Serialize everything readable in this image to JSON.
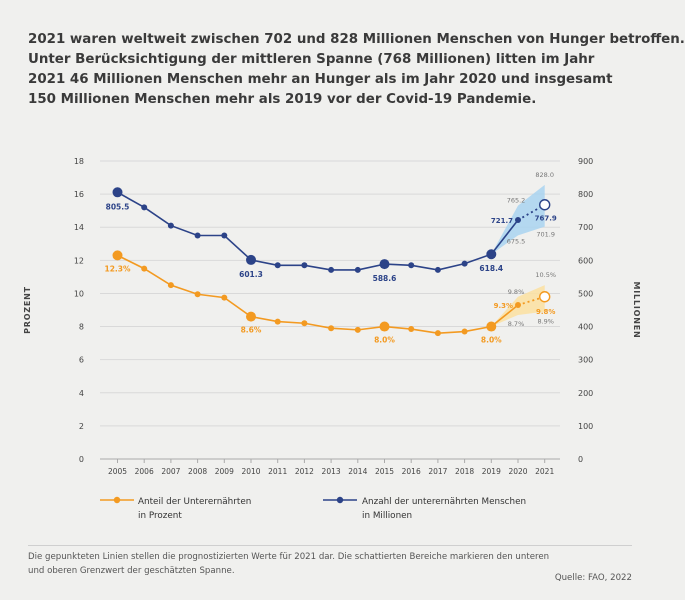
{
  "title_lines": [
    "2021 waren weltweit zwischen 702 und 828 Millionen Menschen von Hunger betroffen.",
    "Unter Berücksichtigung der mittleren Spanne (768 Millionen) litten im Jahr",
    "2021 46 Millionen Menschen mehr an Hunger als im Jahr 2020 und insgesamt",
    "150 Millionen Menschen mehr als 2019 vor der Covid-19 Pandemie."
  ],
  "legend": {
    "orange_line1": "Anteil der Unterernährten",
    "orange_line2": "in Prozent",
    "blue_line1": "Anzahl der unterernährten Menschen",
    "blue_line2": "in Millionen"
  },
  "note_lines": [
    "Die gepunkteten Linien stellen die prognostizierten Werte für 2021 dar. Die schattierten Bereiche markieren den unteren",
    "und oberen Grenzwert der geschätzten Spanne."
  ],
  "source": "Quelle: FAO, 2022",
  "colors": {
    "orange": "#f39a21",
    "blue": "#2c4388",
    "blue_band": "#a9d4f0",
    "orange_band": "#fbe0a0",
    "grid": "#d9d9d9"
  },
  "chart_data": {
    "type": "line",
    "categories": [
      "2005",
      "2006",
      "2007",
      "2008",
      "2009",
      "2010",
      "2011",
      "2012",
      "2013",
      "2014",
      "2015",
      "2016",
      "2017",
      "2018",
      "2019",
      "2020",
      "2021"
    ],
    "left_axis": {
      "label": "PROZENT",
      "ylim": [
        0,
        18
      ],
      "ticks": [
        "0",
        "2",
        "4",
        "6",
        "8",
        "10",
        "12",
        "14",
        "16",
        "18"
      ]
    },
    "right_axis": {
      "label": "MILLIONEN",
      "ylim": [
        0,
        900
      ],
      "ticks": [
        "0",
        "100",
        "200",
        "300",
        "400",
        "500",
        "600",
        "700",
        "800",
        "900"
      ]
    },
    "series": [
      {
        "name": "Anteil der Unterernährten in Prozent",
        "axis": "left",
        "values": [
          12.3,
          11.5,
          10.5,
          9.95,
          9.75,
          8.6,
          8.3,
          8.2,
          7.9,
          7.8,
          8.0,
          7.85,
          7.6,
          7.7,
          8.0,
          9.3,
          9.8
        ],
        "highlight_years": [
          "2005",
          "2010",
          "2015",
          "2019"
        ],
        "highlight_labels": [
          "12.3%",
          "8.6%",
          "8.0%",
          "8.0%"
        ],
        "projection_label_2020": "9.3%",
        "projection_label_2021": "9.8%",
        "band_2020": {
          "high": 9.8,
          "low": 8.7,
          "high_label": "9.8%",
          "low_label": "8.7%"
        },
        "band_2021": {
          "high": 10.5,
          "low": 8.9,
          "high_label": "10.5%",
          "low_label": "8.9%"
        }
      },
      {
        "name": "Anzahl der unterernährten Menschen in Millionen",
        "axis": "right",
        "values": [
          805.5,
          760,
          705,
          675,
          675,
          601.3,
          585,
          585,
          571,
          571,
          588.6,
          585,
          571,
          590,
          618.4,
          721.7,
          767.9
        ],
        "highlight_years": [
          "2005",
          "2010",
          "2015",
          "2019"
        ],
        "highlight_labels": [
          "805.5",
          "601.3",
          "588.6",
          "618.4"
        ],
        "projection_label_2020": "721.7",
        "projection_label_2021": "767.9",
        "band_2020": {
          "high": 765.2,
          "low": 675.5,
          "high_label": "765.2",
          "low_label": "675.5"
        },
        "band_2021": {
          "high": 828.0,
          "low": 701.9,
          "high_label": "828.0",
          "low_label": "701.9"
        }
      }
    ]
  }
}
